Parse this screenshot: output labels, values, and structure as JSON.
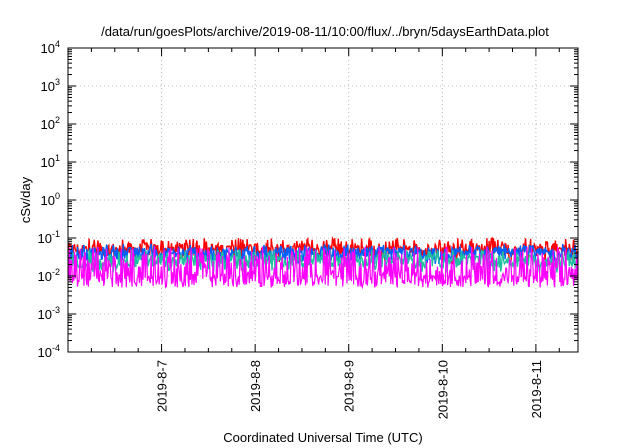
{
  "chart_data": {
    "type": "line",
    "title": "/data/run/goesPlots/archive/2019-08-11/10:00/flux/../bryn/5daysEarthData.plot",
    "xlabel": "Coordinated Universal Time (UTC)",
    "ylabel": "cSv/day",
    "y_scale": "log",
    "ylim": [
      0.0001,
      10000
    ],
    "y_ticks": [
      {
        "base": "10",
        "exp": "4"
      },
      {
        "base": "10",
        "exp": "3"
      },
      {
        "base": "10",
        "exp": "2"
      },
      {
        "base": "10",
        "exp": "1"
      },
      {
        "base": "10",
        "exp": "0"
      },
      {
        "base": "10",
        "exp": "-1"
      },
      {
        "base": "10",
        "exp": "-2"
      },
      {
        "base": "10",
        "exp": "-3"
      },
      {
        "base": "10",
        "exp": "-4"
      }
    ],
    "x_ticks": [
      "2019-8-7",
      "2019-8-8",
      "2019-8-9",
      "2019-8-10",
      "2019-8-11"
    ],
    "xlim_days": [
      0,
      5.45
    ],
    "x_tick_positions_days": [
      1,
      2,
      3,
      4,
      5
    ],
    "grid": true,
    "legend": "none",
    "series": [
      {
        "color": "#ff0000",
        "typical": 0.05,
        "low": 0.02,
        "high": 0.1
      },
      {
        "color": "#0060ff",
        "typical": 0.038,
        "low": 0.02,
        "high": 0.07
      },
      {
        "color": "#20c0a0",
        "typical": 0.025,
        "low": 0.012,
        "high": 0.05
      },
      {
        "color": "#ff00ff",
        "typical": 0.009,
        "low": 0.005,
        "high": 0.06
      }
    ]
  }
}
